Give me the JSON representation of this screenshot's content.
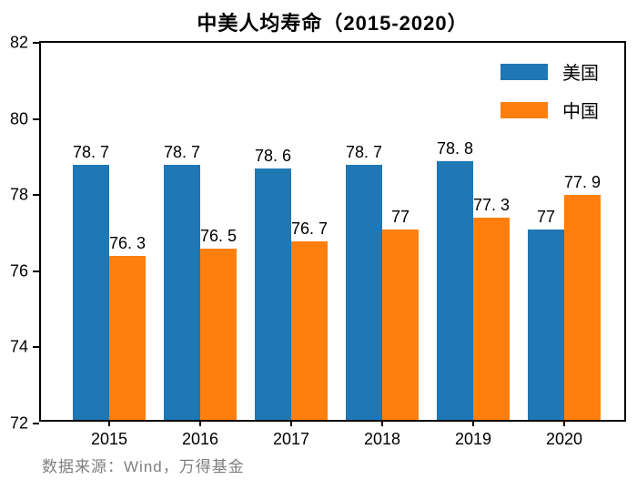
{
  "chart_data": {
    "type": "bar",
    "title": "中美人均寿命（2015-2020）",
    "categories": [
      "2015",
      "2016",
      "2017",
      "2018",
      "2019",
      "2020"
    ],
    "series": [
      {
        "name": "美国",
        "color": "#1f77b4",
        "values": [
          78.7,
          78.7,
          78.6,
          78.7,
          78.8,
          77
        ],
        "display_labels": [
          "78. 7",
          "78. 7",
          "78. 6",
          "78. 7",
          "78. 8",
          "77"
        ]
      },
      {
        "name": "中国",
        "color": "#ff7f0e",
        "values": [
          76.3,
          76.5,
          76.7,
          77,
          77.3,
          77.9
        ],
        "display_labels": [
          "76. 3",
          "76. 5",
          "76. 7",
          "77",
          "77. 3",
          "77. 9"
        ]
      }
    ],
    "xlabel": "",
    "ylabel": "",
    "ylim": [
      72,
      82
    ],
    "yticks": [
      "72",
      "74",
      "76",
      "78",
      "80",
      "82"
    ],
    "grid": false,
    "legend_position": "upper right"
  },
  "source_note": "数据来源：Wind，万得基金",
  "colors": {
    "axis": "#000000",
    "background": "#ffffff",
    "source_text": "#7f7f7f"
  }
}
